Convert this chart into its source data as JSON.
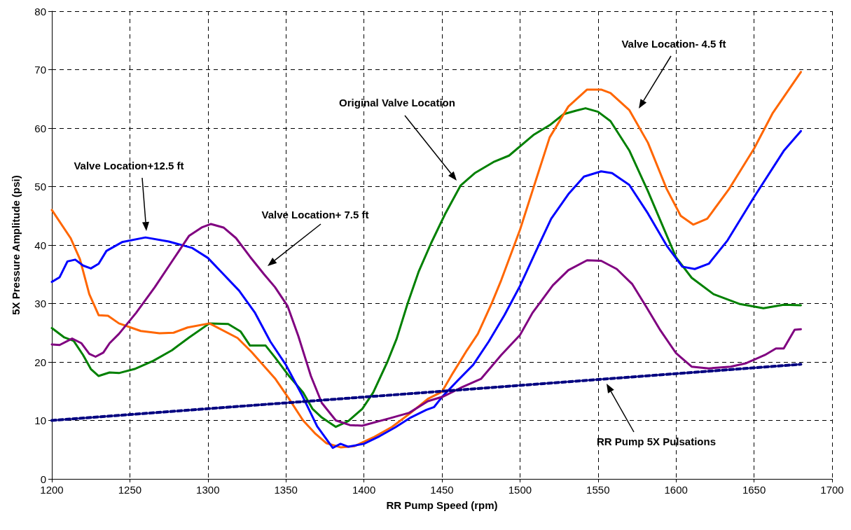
{
  "chart_data": {
    "type": "line",
    "xlabel": "RR Pump Speed (rpm)",
    "ylabel": "5X Pressure Amplitude (psi)",
    "xlim": [
      1200,
      1700
    ],
    "xticks": [
      1200,
      1250,
      1300,
      1350,
      1400,
      1450,
      1500,
      1550,
      1600,
      1650,
      1700
    ],
    "ylim": [
      0,
      80
    ],
    "yticks": [
      0,
      10,
      20,
      30,
      40,
      50,
      60,
      70,
      80
    ],
    "grid": true,
    "marker": "none",
    "series": [
      {
        "color": "#008000",
        "line_style": "solid",
        "x": [
          1200,
          1208,
          1214,
          1220,
          1225,
          1230,
          1237,
          1243,
          1253,
          1265,
          1277,
          1288,
          1301,
          1313,
          1321,
          1327,
          1337,
          1343,
          1352,
          1361,
          1367,
          1373,
          1382,
          1390,
          1399,
          1406,
          1415,
          1421,
          1428,
          1435,
          1443,
          1452,
          1462,
          1471,
          1483,
          1493,
          1509,
          1519,
          1528,
          1536,
          1542,
          1550,
          1558,
          1570,
          1582,
          1593,
          1600,
          1610,
          1624,
          1641,
          1656,
          1669,
          1680
        ],
        "values": [
          25.8,
          24.2,
          23.6,
          21.2,
          18.8,
          17.6,
          18.2,
          18.1,
          18.8,
          20.2,
          22.0,
          24.2,
          26.6,
          26.5,
          25.2,
          22.8,
          22.8,
          20.8,
          17.6,
          14.8,
          12.0,
          10.5,
          8.9,
          9.9,
          12.0,
          14.8,
          20.0,
          24.0,
          30.0,
          35.4,
          40.3,
          45.3,
          50.2,
          52.3,
          54.2,
          55.3,
          58.9,
          60.5,
          62.4,
          63.0,
          63.4,
          62.8,
          61.2,
          56.2,
          49.2,
          42.3,
          37.9,
          34.4,
          31.6,
          29.9,
          29.2,
          29.8,
          29.7
        ]
      },
      {
        "color": "#ff6600",
        "line_style": "solid",
        "x": [
          1200,
          1212,
          1218,
          1224,
          1230,
          1236,
          1243,
          1257,
          1269,
          1278,
          1287,
          1301,
          1319,
          1328,
          1343,
          1352,
          1361,
          1369,
          1376,
          1385,
          1394,
          1406,
          1418,
          1430,
          1441,
          1450,
          1457,
          1466,
          1473,
          1482,
          1488,
          1500,
          1509,
          1519,
          1531,
          1543,
          1552,
          1558,
          1570,
          1582,
          1594,
          1603,
          1611,
          1620,
          1634,
          1650,
          1662,
          1680
        ],
        "values": [
          46.0,
          41.2,
          37.6,
          31.6,
          28.0,
          27.9,
          26.6,
          25.3,
          24.9,
          25.0,
          25.9,
          26.6,
          24.1,
          21.7,
          17.2,
          13.7,
          10.0,
          7.7,
          6.1,
          5.4,
          5.6,
          7.1,
          8.9,
          11.3,
          13.7,
          14.9,
          18.1,
          22.0,
          24.8,
          30.1,
          34.0,
          42.6,
          50.1,
          58.4,
          63.7,
          66.6,
          66.6,
          66.0,
          63.1,
          57.5,
          49.6,
          45.0,
          43.5,
          44.5,
          49.6,
          56.5,
          62.6,
          69.6
        ]
      },
      {
        "color": "#0000ff",
        "line_style": "solid",
        "x": [
          1200,
          1205,
          1210,
          1215,
          1220,
          1225,
          1230,
          1235,
          1245,
          1260,
          1275,
          1290,
          1300,
          1310,
          1320,
          1330,
          1340,
          1350,
          1360,
          1370,
          1380,
          1385,
          1390,
          1400,
          1410,
          1420,
          1430,
          1440,
          1445,
          1450,
          1460,
          1470,
          1480,
          1490,
          1500,
          1511,
          1520,
          1531,
          1541,
          1552,
          1559,
          1570,
          1582,
          1594,
          1604,
          1612,
          1621,
          1633,
          1650,
          1669,
          1680
        ],
        "values": [
          33.7,
          34.5,
          37.2,
          37.5,
          36.5,
          36.0,
          36.8,
          39.0,
          40.5,
          41.3,
          40.6,
          39.5,
          37.8,
          35.0,
          32.2,
          28.5,
          23.5,
          19.5,
          14.5,
          9.0,
          5.3,
          6.0,
          5.5,
          6.0,
          7.3,
          8.8,
          10.5,
          11.8,
          12.3,
          14.0,
          16.8,
          19.5,
          23.5,
          28.0,
          33.0,
          39.4,
          44.5,
          48.7,
          51.7,
          52.6,
          52.3,
          50.3,
          45.4,
          39.9,
          36.3,
          35.9,
          36.8,
          40.8,
          48.2,
          56.1,
          59.5
        ]
      },
      {
        "color": "#800080",
        "line_style": "solid",
        "x": [
          1200,
          1205,
          1213,
          1219,
          1224,
          1228,
          1233,
          1237,
          1243,
          1254,
          1266,
          1278,
          1288,
          1296,
          1302,
          1310,
          1318,
          1327,
          1336,
          1343,
          1351,
          1358,
          1366,
          1373,
          1382,
          1391,
          1399,
          1417,
          1429,
          1441,
          1451,
          1463,
          1475,
          1488,
          1500,
          1508,
          1521,
          1531,
          1543,
          1552,
          1562,
          1572,
          1581,
          1590,
          1600,
          1610,
          1621,
          1635,
          1645,
          1657,
          1664,
          1669,
          1676,
          1680
        ],
        "values": [
          23.0,
          22.9,
          24.0,
          23.2,
          21.4,
          20.9,
          21.6,
          23.2,
          24.8,
          28.4,
          32.8,
          37.6,
          41.6,
          43.0,
          43.6,
          43.0,
          41.2,
          38.0,
          35.0,
          32.8,
          29.6,
          24.4,
          17.6,
          13.0,
          10.0,
          9.2,
          9.1,
          10.4,
          11.3,
          13.3,
          14.1,
          15.7,
          17.1,
          21.2,
          24.6,
          28.4,
          33.1,
          35.7,
          37.4,
          37.3,
          35.9,
          33.3,
          29.4,
          25.4,
          21.5,
          19.2,
          18.9,
          19.2,
          19.8,
          21.2,
          22.3,
          22.3,
          25.5,
          25.6
        ]
      },
      {
        "color": "#000080",
        "line_style": "dashed",
        "x": [
          1200,
          1680
        ],
        "values": [
          10.0,
          19.6
        ]
      }
    ],
    "annotations": [
      "Valve Location+12.5 ft",
      "Valve Location+ 7.5 ft",
      "Original Valve Location",
      "Valve Location- 4.5 ft",
      "RR Pump 5X Pulsations"
    ]
  }
}
